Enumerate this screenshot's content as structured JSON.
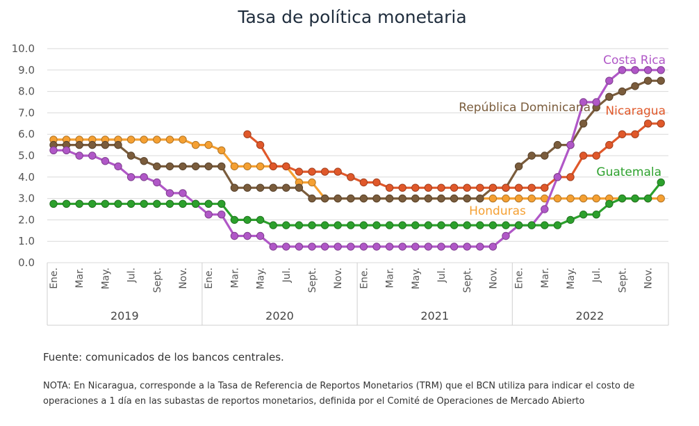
{
  "chart_data": {
    "type": "line",
    "title": "Tasa de política monetaria",
    "ylim": [
      0,
      10
    ],
    "yticks": [
      "0.0",
      "1.0",
      "2.0",
      "3.0",
      "4.0",
      "5.0",
      "6.0",
      "7.0",
      "8.0",
      "9.0",
      "10.0"
    ],
    "grid": "horizontal",
    "month_labels": [
      "Ene.",
      "Mar.",
      "May.",
      "Jul.",
      "Sept.",
      "Nov."
    ],
    "years": [
      "2019",
      "2020",
      "2021",
      "2022"
    ],
    "x": [
      "2019-01",
      "2019-02",
      "2019-03",
      "2019-04",
      "2019-05",
      "2019-06",
      "2019-07",
      "2019-08",
      "2019-09",
      "2019-10",
      "2019-11",
      "2019-12",
      "2020-01",
      "2020-02",
      "2020-03",
      "2020-04",
      "2020-05",
      "2020-06",
      "2020-07",
      "2020-08",
      "2020-09",
      "2020-10",
      "2020-11",
      "2020-12",
      "2021-01",
      "2021-02",
      "2021-03",
      "2021-04",
      "2021-05",
      "2021-06",
      "2021-07",
      "2021-08",
      "2021-09",
      "2021-10",
      "2021-11",
      "2021-12",
      "2022-01",
      "2022-02",
      "2022-03",
      "2022-04",
      "2022-05",
      "2022-06",
      "2022-07",
      "2022-08",
      "2022-09",
      "2022-10",
      "2022-11",
      "2022-12"
    ],
    "series": [
      {
        "name": "Honduras",
        "color": "#f5a032",
        "values": [
          5.75,
          5.75,
          5.75,
          5.75,
          5.75,
          5.75,
          5.75,
          5.75,
          5.75,
          5.75,
          5.75,
          5.5,
          5.5,
          5.25,
          4.5,
          4.5,
          4.5,
          4.5,
          4.5,
          3.75,
          3.75,
          3.0,
          3.0,
          3.0,
          3.0,
          3.0,
          3.0,
          3.0,
          3.0,
          3.0,
          3.0,
          3.0,
          3.0,
          3.0,
          3.0,
          3.0,
          3.0,
          3.0,
          3.0,
          3.0,
          3.0,
          3.0,
          3.0,
          3.0,
          3.0,
          3.0,
          3.0,
          3.0
        ]
      },
      {
        "name": "República Dominicana",
        "color": "#7a5c3c",
        "values": [
          5.5,
          5.5,
          5.5,
          5.5,
          5.5,
          5.5,
          5.0,
          4.75,
          4.5,
          4.5,
          4.5,
          4.5,
          4.5,
          4.5,
          3.5,
          3.5,
          3.5,
          3.5,
          3.5,
          3.5,
          3.0,
          3.0,
          3.0,
          3.0,
          3.0,
          3.0,
          3.0,
          3.0,
          3.0,
          3.0,
          3.0,
          3.0,
          3.0,
          3.0,
          3.5,
          3.5,
          4.5,
          5.0,
          5.0,
          5.5,
          5.5,
          6.5,
          7.25,
          7.75,
          8.0,
          8.25,
          8.5,
          8.5
        ]
      },
      {
        "name": "Nicaragua",
        "color": "#e0582a",
        "values": [
          null,
          null,
          null,
          null,
          null,
          null,
          null,
          null,
          null,
          null,
          null,
          null,
          null,
          null,
          null,
          6.0,
          5.5,
          4.5,
          4.5,
          4.25,
          4.25,
          4.25,
          4.25,
          4.0,
          3.75,
          3.75,
          3.5,
          3.5,
          3.5,
          3.5,
          3.5,
          3.5,
          3.5,
          3.5,
          3.5,
          3.5,
          3.5,
          3.5,
          3.5,
          4.0,
          4.0,
          5.0,
          5.0,
          5.5,
          6.0,
          6.0,
          6.5,
          6.5
        ]
      },
      {
        "name": "Costa Rica",
        "color": "#b057c7",
        "values": [
          5.25,
          5.25,
          5.0,
          5.0,
          4.75,
          4.5,
          4.0,
          4.0,
          3.75,
          3.25,
          3.25,
          2.75,
          2.25,
          2.25,
          1.25,
          1.25,
          1.25,
          0.75,
          0.75,
          0.75,
          0.75,
          0.75,
          0.75,
          0.75,
          0.75,
          0.75,
          0.75,
          0.75,
          0.75,
          0.75,
          0.75,
          0.75,
          0.75,
          0.75,
          0.75,
          1.25,
          1.75,
          1.75,
          2.5,
          4.0,
          5.5,
          7.5,
          7.5,
          8.5,
          9.0,
          9.0,
          9.0,
          9.0
        ]
      },
      {
        "name": "Guatemala",
        "color": "#2ca02c",
        "values": [
          2.75,
          2.75,
          2.75,
          2.75,
          2.75,
          2.75,
          2.75,
          2.75,
          2.75,
          2.75,
          2.75,
          2.75,
          2.75,
          2.75,
          2.0,
          2.0,
          2.0,
          1.75,
          1.75,
          1.75,
          1.75,
          1.75,
          1.75,
          1.75,
          1.75,
          1.75,
          1.75,
          1.75,
          1.75,
          1.75,
          1.75,
          1.75,
          1.75,
          1.75,
          1.75,
          1.75,
          1.75,
          1.75,
          1.75,
          1.75,
          2.0,
          2.25,
          2.25,
          2.75,
          3.0,
          3.0,
          3.0,
          3.75
        ]
      }
    ]
  },
  "source": "Fuente: comunicados de los bancos centrales.",
  "note": "NOTA: En Nicaragua, corresponde a la Tasa de Referencia de Reportos Monetarios (TRM) que el BCN utiliza para indicar el costo de operaciones a 1 día en las subastas de reportos monetarios, definida por el Comité de Operaciones de Mercado Abierto"
}
